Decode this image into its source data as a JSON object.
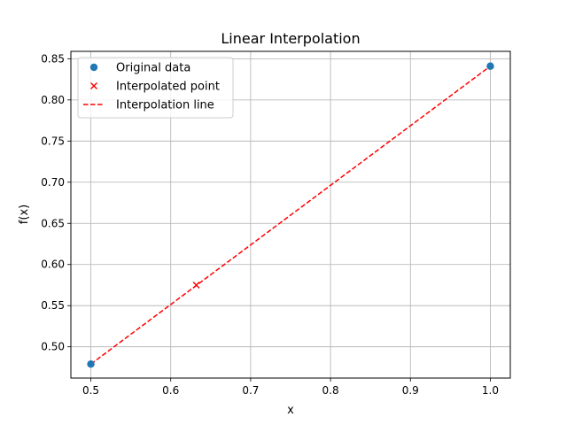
{
  "chart_data": {
    "type": "line",
    "title": "Linear Interpolation",
    "xlabel": "x",
    "ylabel": "f(x)",
    "xlim": [
      0.475,
      1.025
    ],
    "ylim": [
      0.462,
      0.859
    ],
    "xticks": [
      0.5,
      0.6,
      0.7,
      0.8,
      0.9,
      1.0
    ],
    "xtick_labels": [
      "0.5",
      "0.6",
      "0.7",
      "0.8",
      "0.9",
      "1.0"
    ],
    "yticks": [
      0.5,
      0.55,
      0.6,
      0.65,
      0.7,
      0.75,
      0.8,
      0.85
    ],
    "ytick_labels": [
      "0.50",
      "0.55",
      "0.60",
      "0.65",
      "0.70",
      "0.75",
      "0.80",
      "0.85"
    ],
    "grid": true,
    "legend_position": "top-left",
    "series": [
      {
        "name": "Original data",
        "kind": "scatter",
        "marker": "circle",
        "color": "#1f77b4",
        "x": [
          0.5,
          1.0
        ],
        "y": [
          0.479,
          0.841
        ]
      },
      {
        "name": "Interpolated point",
        "kind": "scatter",
        "marker": "x",
        "color": "#ff0000",
        "x": [
          0.632
        ],
        "y": [
          0.575
        ]
      },
      {
        "name": "Interpolation line",
        "kind": "line",
        "linestyle": "dashed",
        "color": "#ff0000",
        "x": [
          0.5,
          1.0
        ],
        "y": [
          0.479,
          0.841
        ]
      }
    ]
  }
}
